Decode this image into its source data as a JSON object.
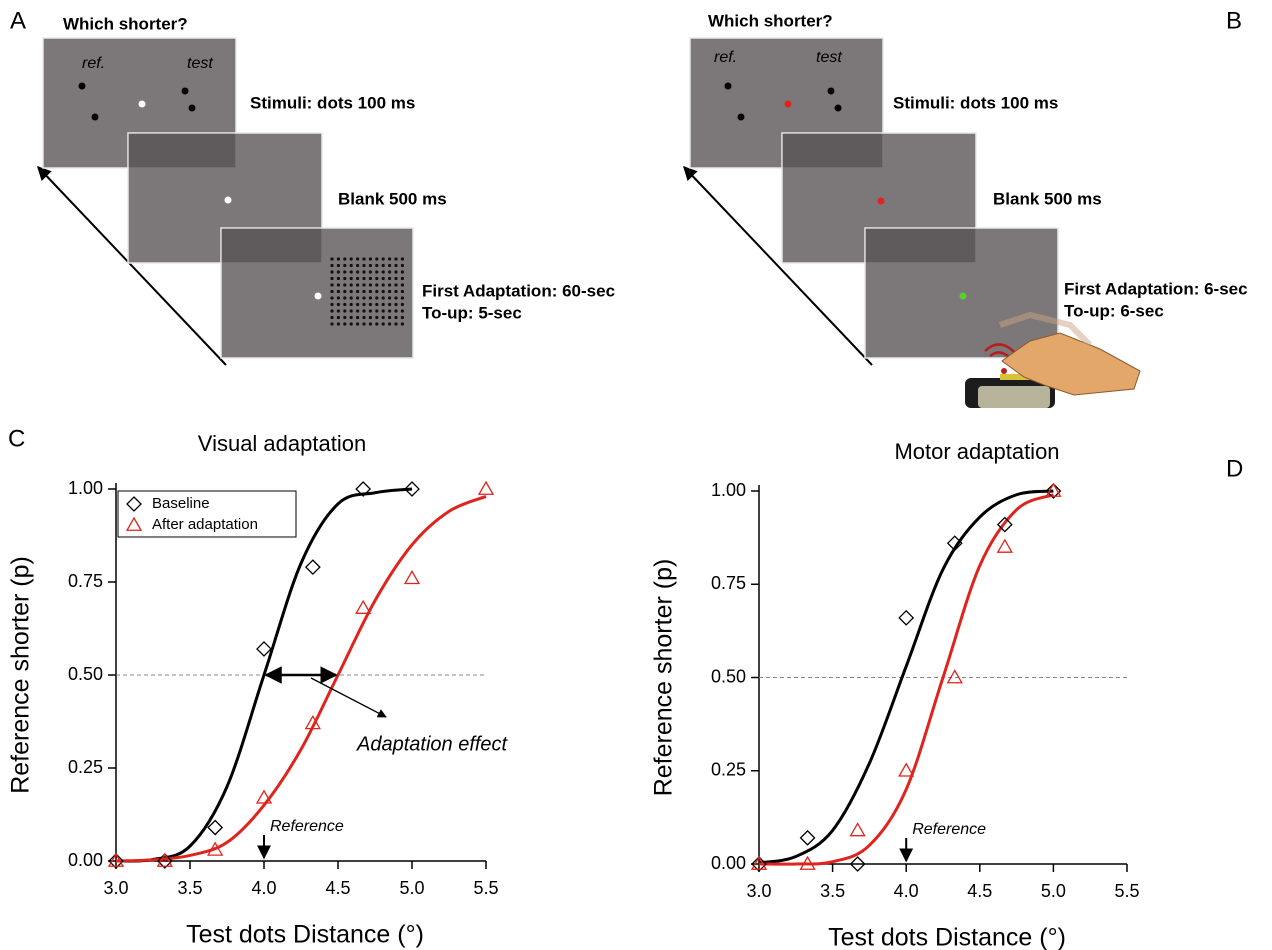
{
  "panel_labels": [
    "A",
    "B",
    "C",
    "D"
  ],
  "diagrams": [
    {
      "question": "Which shorter?",
      "ref": "ref.",
      "test": "test",
      "stimuli": "Stimuli: dots 100 ms",
      "blank": "Blank 500 ms",
      "adaptation": "First Adaptation: 60-sec",
      "top_up": "To-up: 5-sec"
    },
    {
      "question": "Which shorter?",
      "ref": "ref.",
      "test": "test",
      "stimuli": "Stimuli: dots 100 ms",
      "blank": "Blank 500 ms",
      "adaptation": "First Adaptation: 6-sec",
      "top_up": "To-up: 6-sec"
    }
  ],
  "chart_data": [
    {
      "type": "scatter",
      "title": "Visual adaptation",
      "xlabel": "Test dots Distance (°)",
      "ylabel": "Reference shorter (p)",
      "xlim": [
        3,
        5.5
      ],
      "ylim": [
        0,
        1
      ],
      "xticks": [
        {
          "value": 3,
          "label": "3.0"
        },
        {
          "value": 3.5,
          "label": "3.5"
        },
        {
          "value": 4,
          "label": "4.0"
        },
        {
          "value": 4.5,
          "label": "4.5"
        },
        {
          "value": 5,
          "label": "5.0"
        },
        {
          "value": 5.5,
          "label": "5.5"
        }
      ],
      "yticks": [
        {
          "value": 0,
          "label": "0.00"
        },
        {
          "value": 0.25,
          "label": "0.25"
        },
        {
          "value": 0.5,
          "label": "0.50"
        },
        {
          "value": 0.75,
          "label": "0.75"
        },
        {
          "value": 1,
          "label": "1.00"
        }
      ],
      "threshold": 0.5,
      "legend": "upper left",
      "series": [
        {
          "name": "Baseline",
          "color": "#000000",
          "marker": "diamond",
          "x": [
            3,
            3.33,
            3.67,
            4,
            4.33,
            4.67,
            5
          ],
          "values": [
            0,
            0,
            0.09,
            0.57,
            0.79,
            1.0,
            1.0
          ]
        },
        {
          "name": "After adaptation",
          "color": "#e0231c",
          "marker": "triangle",
          "x": [
            3,
            3.33,
            3.67,
            4,
            4.33,
            4.67,
            5,
            5.5
          ],
          "values": [
            0,
            0,
            0.03,
            0.17,
            0.37,
            0.68,
            0.76,
            1.0
          ]
        }
      ],
      "fits": [
        {
          "color": "#000000",
          "x": [
            3,
            3.25,
            3.5,
            3.75,
            4,
            4.25,
            4.5,
            4.75,
            5
          ],
          "values": [
            0,
            0.004,
            0.04,
            0.2,
            0.5,
            0.8,
            0.96,
            0.99,
            1.0
          ]
        },
        {
          "color": "#e0231c",
          "x": [
            3,
            3.25,
            3.5,
            3.75,
            4,
            4.25,
            4.5,
            4.75,
            5,
            5.25,
            5.5
          ],
          "values": [
            0,
            0.003,
            0.015,
            0.05,
            0.15,
            0.3,
            0.5,
            0.7,
            0.85,
            0.94,
            0.98
          ]
        }
      ],
      "reference": {
        "text": "Reference",
        "x": 4
      },
      "effect": {
        "text": "Adaptation effect",
        "from": 4,
        "to": 4.5,
        "y": 0.5
      }
    },
    {
      "type": "scatter",
      "title": "Motor adaptation",
      "xlabel": "Test dots Distance (°)",
      "ylabel": "Reference shorter (p)",
      "xlim": [
        3,
        5.5
      ],
      "ylim": [
        0,
        1
      ],
      "xticks": [
        {
          "value": 3,
          "label": "3.0"
        },
        {
          "value": 3.5,
          "label": "3.5"
        },
        {
          "value": 4,
          "label": "4.0"
        },
        {
          "value": 4.5,
          "label": "4.5"
        },
        {
          "value": 5,
          "label": "5.0"
        },
        {
          "value": 5.5,
          "label": "5.5"
        }
      ],
      "yticks": [
        {
          "value": 0,
          "label": "0.00"
        },
        {
          "value": 0.25,
          "label": "0.25"
        },
        {
          "value": 0.5,
          "label": "0.50"
        },
        {
          "value": 0.75,
          "label": "0.75"
        },
        {
          "value": 1,
          "label": "1.00"
        }
      ],
      "threshold": 0.5,
      "series": [
        {
          "color": "#000000",
          "marker": "diamond",
          "x": [
            3,
            3.33,
            3.67,
            4,
            4.33,
            4.67,
            5
          ],
          "values": [
            0,
            0.07,
            0,
            0.66,
            0.86,
            0.91,
            1.0
          ]
        },
        {
          "color": "#e0231c",
          "marker": "triangle",
          "x": [
            3,
            3.33,
            3.67,
            4,
            4.33,
            4.67,
            5
          ],
          "values": [
            0,
            0,
            0.09,
            0.25,
            0.5,
            0.85,
            1.0
          ]
        }
      ],
      "fits": [
        {
          "color": "#000000",
          "x": [
            3,
            3.25,
            3.5,
            3.75,
            4,
            4.25,
            4.5,
            4.75,
            5
          ],
          "values": [
            0.003,
            0.02,
            0.09,
            0.27,
            0.53,
            0.79,
            0.93,
            0.99,
            1.0
          ]
        },
        {
          "color": "#e0231c",
          "x": [
            3,
            3.25,
            3.5,
            3.75,
            4,
            4.25,
            4.5,
            4.75,
            5
          ],
          "values": [
            0,
            0,
            0.006,
            0.05,
            0.2,
            0.5,
            0.8,
            0.95,
            0.99
          ]
        }
      ],
      "reference": {
        "text": "Reference",
        "x": 4
      }
    }
  ]
}
